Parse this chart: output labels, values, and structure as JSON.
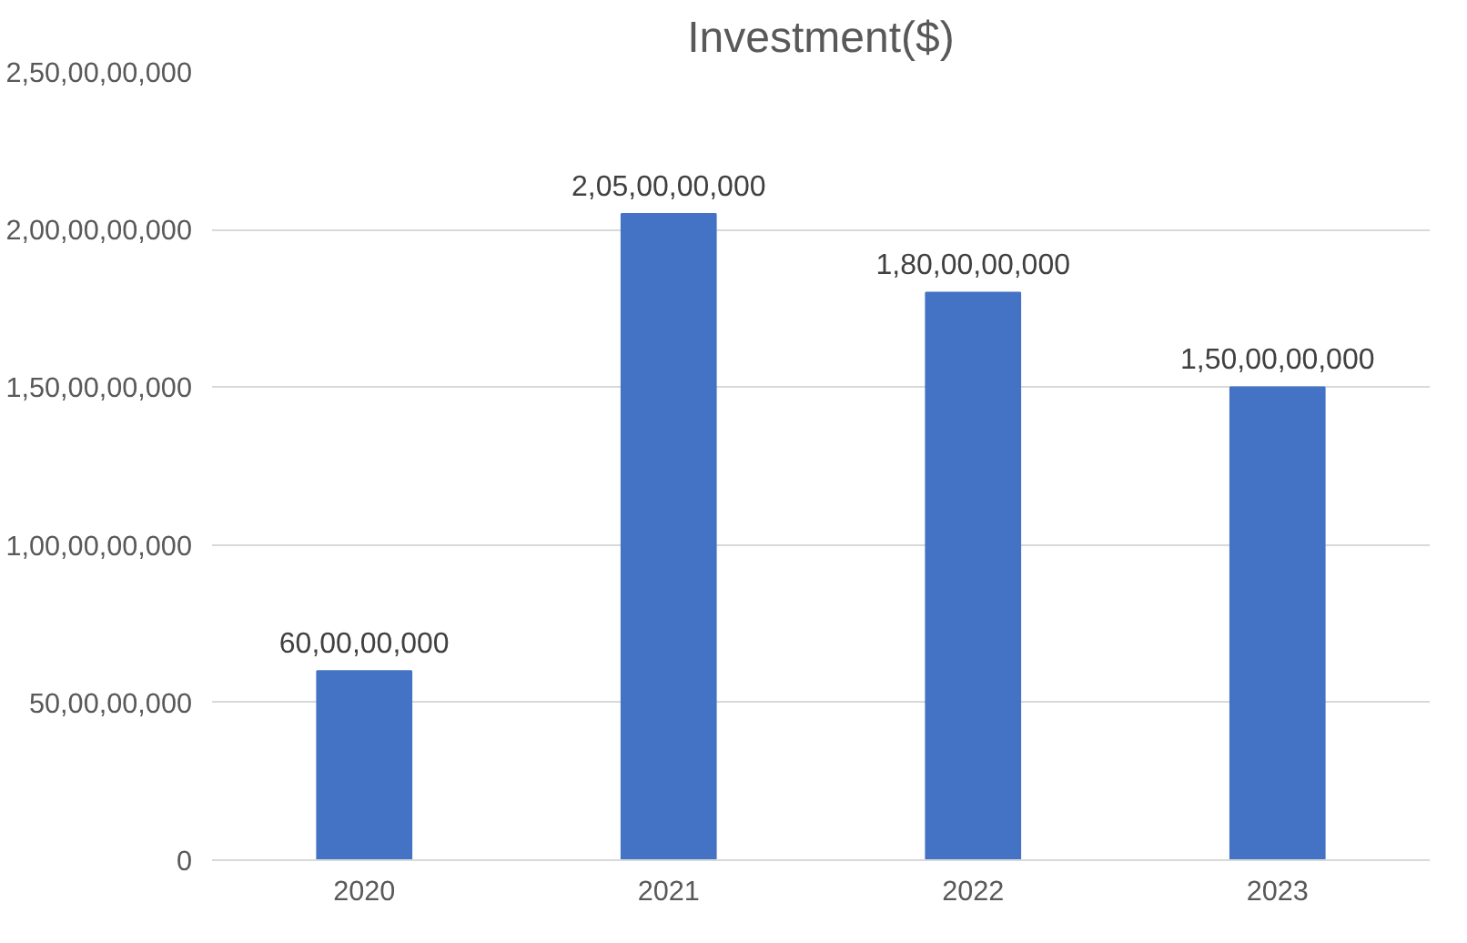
{
  "chart_data": {
    "type": "bar",
    "title": "Investment($)",
    "categories": [
      "2020",
      "2021",
      "2022",
      "2023"
    ],
    "values": [
      600000000,
      2050000000,
      1800000000,
      1500000000
    ],
    "value_labels": [
      "60,00,00,000",
      "2,05,00,00,000",
      "1,80,00,00,000",
      "1,50,00,00,000"
    ],
    "color": "#4472c4",
    "ylim": [
      0,
      2500000000
    ],
    "yticks": [
      {
        "value": 0,
        "label": "0"
      },
      {
        "value": 500000000,
        "label": "50,00,00,000"
      },
      {
        "value": 1000000000,
        "label": "1,00,00,00,000"
      },
      {
        "value": 1500000000,
        "label": "1,50,00,00,000"
      },
      {
        "value": 2000000000,
        "label": "2,00,00,00,000"
      },
      {
        "value": 2500000000,
        "label": "2,50,00,00,000"
      }
    ],
    "grid": "y"
  }
}
